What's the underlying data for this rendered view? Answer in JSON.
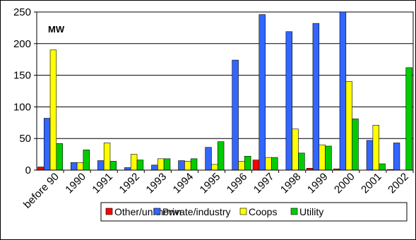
{
  "chart_data": {
    "type": "bar",
    "unit_label": "MW",
    "categories": [
      "before 90",
      "1990",
      "1991",
      "1992",
      "1993",
      "1994",
      "1995",
      "1996",
      "1997",
      "1998",
      "1999",
      "2000",
      "2001",
      "2002"
    ],
    "ylim": [
      0,
      250
    ],
    "yticks": [
      0,
      50,
      100,
      150,
      200,
      250
    ],
    "grid": true,
    "legend_position": "bottom-right",
    "series": [
      {
        "name": "Other/unknown",
        "color": "#ff0000",
        "values": [
          5,
          0,
          0,
          0,
          0,
          0,
          0,
          0,
          16,
          0,
          3,
          2,
          0,
          1
        ]
      },
      {
        "name": "Private/industry",
        "color": "#3366ff",
        "values": [
          82,
          12,
          15,
          4,
          8,
          15,
          36,
          174,
          246,
          219,
          232,
          254,
          47,
          43
        ]
      },
      {
        "name": "Coops",
        "color": "#ffff00",
        "values": [
          190,
          12,
          43,
          25,
          18,
          14,
          9,
          14,
          20,
          65,
          40,
          140,
          71,
          0
        ]
      },
      {
        "name": "Utility",
        "color": "#00cc00",
        "values": [
          42,
          32,
          14,
          16,
          18,
          18,
          45,
          22,
          20,
          27,
          38,
          81,
          10,
          162
        ]
      }
    ]
  }
}
